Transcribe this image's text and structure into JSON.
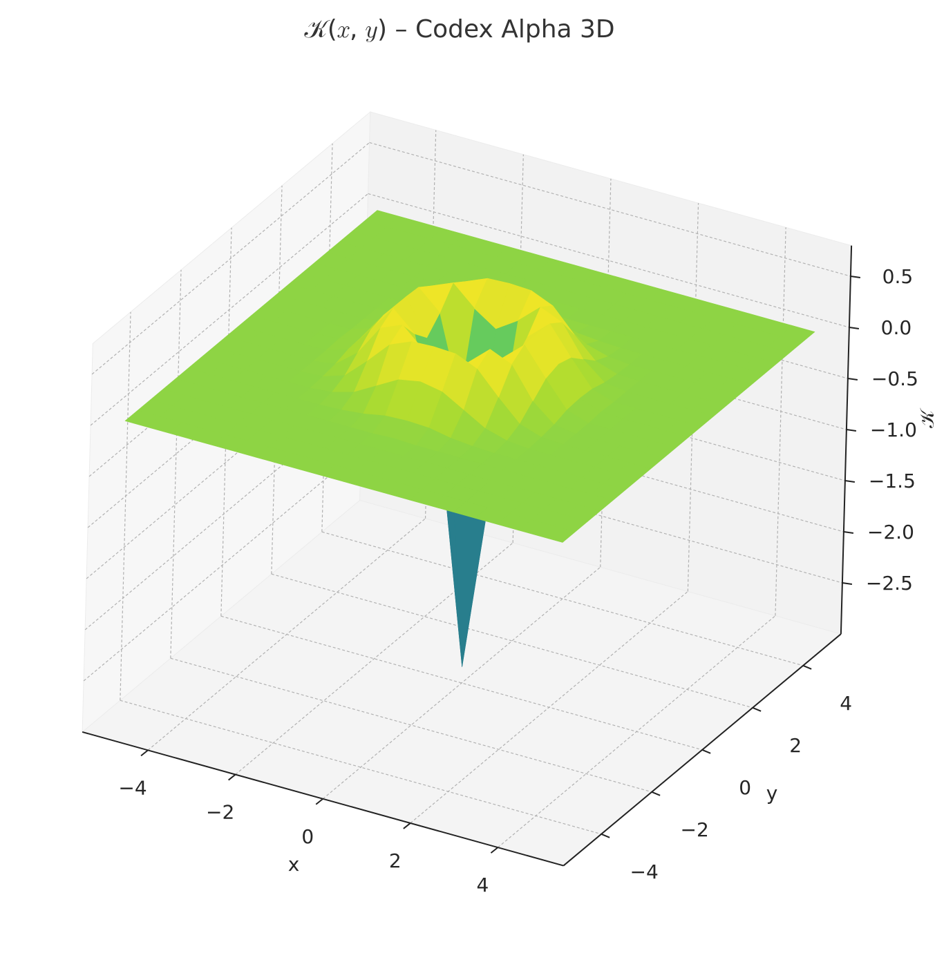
{
  "chart_data": {
    "type": "surface",
    "title": "𝒦(𝑥, 𝑦) – Codex Alpha 3D",
    "x_label": "x",
    "y_label": "y",
    "z_label": "𝒦",
    "colormap": "viridis",
    "grid": true,
    "x": [
      -5,
      -4.5,
      -4,
      -3.5,
      -3,
      -2.5,
      -2,
      -1.5,
      -1,
      -0.5,
      0,
      0.5,
      1,
      1.5,
      2,
      2.5,
      3,
      3.5,
      4,
      4.5,
      5
    ],
    "y": [
      -5,
      -4.5,
      -4,
      -3.5,
      -3,
      -2.5,
      -2,
      -1.5,
      -1,
      -0.5,
      0,
      0.5,
      1,
      1.5,
      2,
      2.5,
      3,
      3.5,
      4,
      4.5,
      5
    ],
    "z": [
      [
        0,
        0,
        0,
        0,
        0,
        0,
        0,
        0,
        0,
        0,
        0,
        0,
        0,
        0,
        0,
        0,
        0,
        0,
        0,
        0,
        0
      ],
      [
        0,
        0,
        0,
        0,
        0,
        0,
        0,
        0,
        0,
        0,
        0,
        0,
        0,
        0,
        0,
        0,
        0,
        0,
        0,
        0,
        0
      ],
      [
        0,
        0,
        0,
        0,
        0,
        0,
        0,
        0,
        0,
        0,
        0,
        0,
        0,
        0,
        0,
        0,
        0,
        0,
        0,
        0,
        0
      ],
      [
        0,
        0,
        0,
        0,
        0,
        0,
        0,
        0,
        0,
        0,
        0,
        0,
        0,
        0,
        0,
        0,
        0,
        0,
        0,
        0,
        0
      ],
      [
        0,
        0,
        0,
        0,
        0,
        0,
        0,
        0,
        0,
        0,
        0.01,
        0,
        0,
        0,
        0,
        0,
        0,
        0,
        0,
        0,
        0
      ],
      [
        0,
        0,
        0,
        0,
        0,
        0,
        0,
        0.01,
        0.03,
        0.07,
        0.08,
        0.07,
        0.03,
        0.01,
        0,
        0,
        0,
        0,
        0,
        0,
        0
      ],
      [
        0,
        0,
        0,
        0,
        0,
        0,
        0.02,
        0.08,
        0.2,
        0.32,
        0.36,
        0.32,
        0.2,
        0.08,
        0.02,
        0,
        0,
        0,
        0,
        0,
        0
      ],
      [
        0,
        0,
        0,
        0,
        0,
        0.01,
        0.08,
        0.28,
        0.5,
        0.59,
        0.6,
        0.59,
        0.5,
        0.28,
        0.08,
        0.01,
        0,
        0,
        0,
        0,
        0
      ],
      [
        0,
        0,
        0,
        0,
        0,
        0.03,
        0.2,
        0.5,
        0.59,
        0.4,
        0.26,
        0.4,
        0.59,
        0.5,
        0.2,
        0.03,
        0,
        0,
        0,
        0,
        0
      ],
      [
        0,
        0,
        0,
        0,
        0,
        0.07,
        0.32,
        0.59,
        0.4,
        -0.37,
        -1.16,
        -0.37,
        0.4,
        0.59,
        0.32,
        0.07,
        0,
        0,
        0,
        0,
        0
      ],
      [
        0,
        0,
        0,
        0,
        0.01,
        0.08,
        0.36,
        0.6,
        0.26,
        -1.16,
        -2.84,
        -1.16,
        0.26,
        0.6,
        0.36,
        0.08,
        0.01,
        0,
        0,
        0,
        0
      ],
      [
        0,
        0,
        0,
        0,
        0,
        0.07,
        0.32,
        0.59,
        0.4,
        -0.37,
        -1.16,
        -0.37,
        0.4,
        0.59,
        0.32,
        0.07,
        0,
        0,
        0,
        0,
        0
      ],
      [
        0,
        0,
        0,
        0,
        0,
        0.03,
        0.2,
        0.5,
        0.59,
        0.4,
        0.26,
        0.4,
        0.59,
        0.5,
        0.2,
        0.03,
        0,
        0,
        0,
        0,
        0
      ],
      [
        0,
        0,
        0,
        0,
        0,
        0.01,
        0.08,
        0.28,
        0.5,
        0.59,
        0.6,
        0.59,
        0.5,
        0.28,
        0.08,
        0.01,
        0,
        0,
        0,
        0,
        0
      ],
      [
        0,
        0,
        0,
        0,
        0,
        0,
        0.02,
        0.08,
        0.2,
        0.32,
        0.36,
        0.32,
        0.2,
        0.08,
        0.02,
        0,
        0,
        0,
        0,
        0,
        0
      ],
      [
        0,
        0,
        0,
        0,
        0,
        0,
        0,
        0.01,
        0.03,
        0.07,
        0.08,
        0.07,
        0.03,
        0.01,
        0,
        0,
        0,
        0,
        0,
        0,
        0
      ],
      [
        0,
        0,
        0,
        0,
        0,
        0,
        0,
        0,
        0,
        0,
        0.01,
        0,
        0,
        0,
        0,
        0,
        0,
        0,
        0,
        0,
        0
      ],
      [
        0,
        0,
        0,
        0,
        0,
        0,
        0,
        0,
        0,
        0,
        0,
        0,
        0,
        0,
        0,
        0,
        0,
        0,
        0,
        0,
        0
      ],
      [
        0,
        0,
        0,
        0,
        0,
        0,
        0,
        0,
        0,
        0,
        0,
        0,
        0,
        0,
        0,
        0,
        0,
        0,
        0,
        0,
        0
      ],
      [
        0,
        0,
        0,
        0,
        0,
        0,
        0,
        0,
        0,
        0,
        0,
        0,
        0,
        0,
        0,
        0,
        0,
        0,
        0,
        0,
        0
      ],
      [
        0,
        0,
        0,
        0,
        0,
        0,
        0,
        0,
        0,
        0,
        0,
        0,
        0,
        0,
        0,
        0,
        0,
        0,
        0,
        0,
        0
      ]
    ],
    "xlim": [
      -5.5,
      5.5
    ],
    "ylim": [
      -5.5,
      5.5
    ],
    "zlim": [
      -3.0,
      0.8
    ],
    "xticks": [
      {
        "value": -4,
        "label": "−4"
      },
      {
        "value": -2,
        "label": "−2"
      },
      0,
      2,
      4
    ],
    "yticks": [
      {
        "value": -4,
        "label": "−4"
      },
      {
        "value": -2,
        "label": "−2"
      },
      0,
      2,
      4
    ],
    "zticks": [
      {
        "value": -2.5,
        "label": "−2.5"
      },
      {
        "value": -2.0,
        "label": "−2.0"
      },
      {
        "value": -1.5,
        "label": "−1.5"
      },
      {
        "value": -1.0,
        "label": "−1.0"
      },
      {
        "value": -0.5,
        "label": "−0.5"
      },
      {
        "value": 0,
        "label": "0.0"
      },
      0.5
    ]
  }
}
